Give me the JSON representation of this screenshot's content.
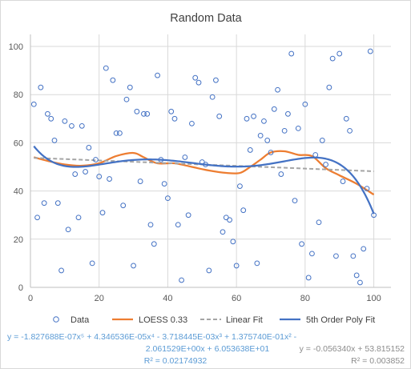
{
  "chart_data": {
    "type": "scatter",
    "title": "Random Data",
    "xlim": [
      0,
      105
    ],
    "ylim": [
      0,
      105
    ],
    "xticks": [
      0,
      20,
      40,
      60,
      80,
      100
    ],
    "yticks": [
      0,
      20,
      40,
      60,
      80,
      100
    ],
    "grid": true,
    "legend_placement": "bottom",
    "series": [
      {
        "name": "Data",
        "kind": "markers",
        "color": "#4472c4",
        "points": [
          [
            1,
            76
          ],
          [
            2,
            29
          ],
          [
            3,
            83
          ],
          [
            4,
            35
          ],
          [
            5,
            72
          ],
          [
            6,
            70
          ],
          [
            7,
            61
          ],
          [
            8,
            35
          ],
          [
            9,
            7
          ],
          [
            10,
            69
          ],
          [
            11,
            24
          ],
          [
            12,
            67
          ],
          [
            13,
            47
          ],
          [
            14,
            29
          ],
          [
            15,
            67
          ],
          [
            16,
            48
          ],
          [
            17,
            58
          ],
          [
            18,
            10
          ],
          [
            19,
            53
          ],
          [
            20,
            46
          ],
          [
            21,
            31
          ],
          [
            22,
            91
          ],
          [
            23,
            45
          ],
          [
            24,
            86
          ],
          [
            25,
            64
          ],
          [
            26,
            64
          ],
          [
            27,
            34
          ],
          [
            28,
            78
          ],
          [
            29,
            83
          ],
          [
            30,
            9
          ],
          [
            31,
            73
          ],
          [
            32,
            44
          ],
          [
            33,
            72
          ],
          [
            34,
            72
          ],
          [
            35,
            26
          ],
          [
            36,
            18
          ],
          [
            37,
            88
          ],
          [
            38,
            53
          ],
          [
            39,
            43
          ],
          [
            40,
            37
          ],
          [
            41,
            73
          ],
          [
            42,
            70
          ],
          [
            43,
            26
          ],
          [
            44,
            3
          ],
          [
            45,
            54
          ],
          [
            46,
            30
          ],
          [
            47,
            68
          ],
          [
            48,
            87
          ],
          [
            49,
            85
          ],
          [
            50,
            52
          ],
          [
            51,
            51
          ],
          [
            52,
            7
          ],
          [
            53,
            79
          ],
          [
            54,
            86
          ],
          [
            55,
            71
          ],
          [
            56,
            23
          ],
          [
            57,
            29
          ],
          [
            58,
            28
          ],
          [
            59,
            19
          ],
          [
            60,
            9
          ],
          [
            61,
            42
          ],
          [
            62,
            32
          ],
          [
            63,
            70
          ],
          [
            64,
            57
          ],
          [
            65,
            71
          ],
          [
            66,
            10
          ],
          [
            67,
            63
          ],
          [
            68,
            69
          ],
          [
            69,
            61
          ],
          [
            70,
            56
          ],
          [
            71,
            74
          ],
          [
            72,
            82
          ],
          [
            73,
            47
          ],
          [
            74,
            65
          ],
          [
            75,
            72
          ],
          [
            76,
            97
          ],
          [
            77,
            36
          ],
          [
            78,
            66
          ],
          [
            79,
            18
          ],
          [
            80,
            76
          ],
          [
            81,
            4
          ],
          [
            82,
            14
          ],
          [
            83,
            55
          ],
          [
            84,
            27
          ],
          [
            85,
            61
          ],
          [
            86,
            51
          ],
          [
            87,
            83
          ],
          [
            88,
            95
          ],
          [
            89,
            13
          ],
          [
            90,
            97
          ],
          [
            91,
            44
          ],
          [
            92,
            70
          ],
          [
            93,
            65
          ],
          [
            94,
            13
          ],
          [
            95,
            5
          ],
          [
            96,
            2
          ],
          [
            97,
            16
          ],
          [
            98,
            41
          ],
          [
            99,
            98
          ],
          [
            100,
            30
          ]
        ]
      },
      {
        "name": "LOESS 0.33",
        "kind": "line",
        "color": "#ed7d31",
        "points": [
          [
            1,
            54
          ],
          [
            5,
            52.5
          ],
          [
            10,
            51
          ],
          [
            15,
            50.5
          ],
          [
            20,
            51.5
          ],
          [
            25,
            54.5
          ],
          [
            30,
            55.8
          ],
          [
            33,
            54
          ],
          [
            37,
            51.5
          ],
          [
            42,
            51.5
          ],
          [
            47,
            50
          ],
          [
            52,
            48.5
          ],
          [
            57,
            47.5
          ],
          [
            61,
            47.5
          ],
          [
            64,
            50
          ],
          [
            67,
            53
          ],
          [
            70,
            56
          ],
          [
            74,
            56.5
          ],
          [
            78,
            55
          ],
          [
            82,
            54.5
          ],
          [
            86,
            49.5
          ],
          [
            90,
            46.5
          ],
          [
            95,
            43
          ],
          [
            100,
            38.5
          ]
        ]
      },
      {
        "name": "Linear Fit",
        "kind": "dashed-line",
        "color": "#a5a5a5",
        "points": [
          [
            1,
            53.76
          ],
          [
            100,
            48.18
          ]
        ]
      },
      {
        "name": "5th Order Poly Fit",
        "kind": "line",
        "color": "#4472c4",
        "fn": "poly5",
        "coeffs": [
          -1.827688e-07,
          4.346536e-05,
          -0.003718445,
          0.137574,
          -2.061529,
          60.53638
        ],
        "x_range": [
          1,
          100
        ]
      }
    ],
    "annotations": {
      "poly_eq_line1": "y = -1.827688E-07x⁵ + 4.346536E-05x⁴ - 3.718445E-03x³ + 1.375740E-01x² -",
      "poly_eq_line2": "2.061529E+00x + 6.053638E+01",
      "poly_r2": "R² = 0.02174932",
      "linear_eq": "y = -0.056340x + 53.815152",
      "linear_r2": "R² = 0.003852"
    }
  }
}
